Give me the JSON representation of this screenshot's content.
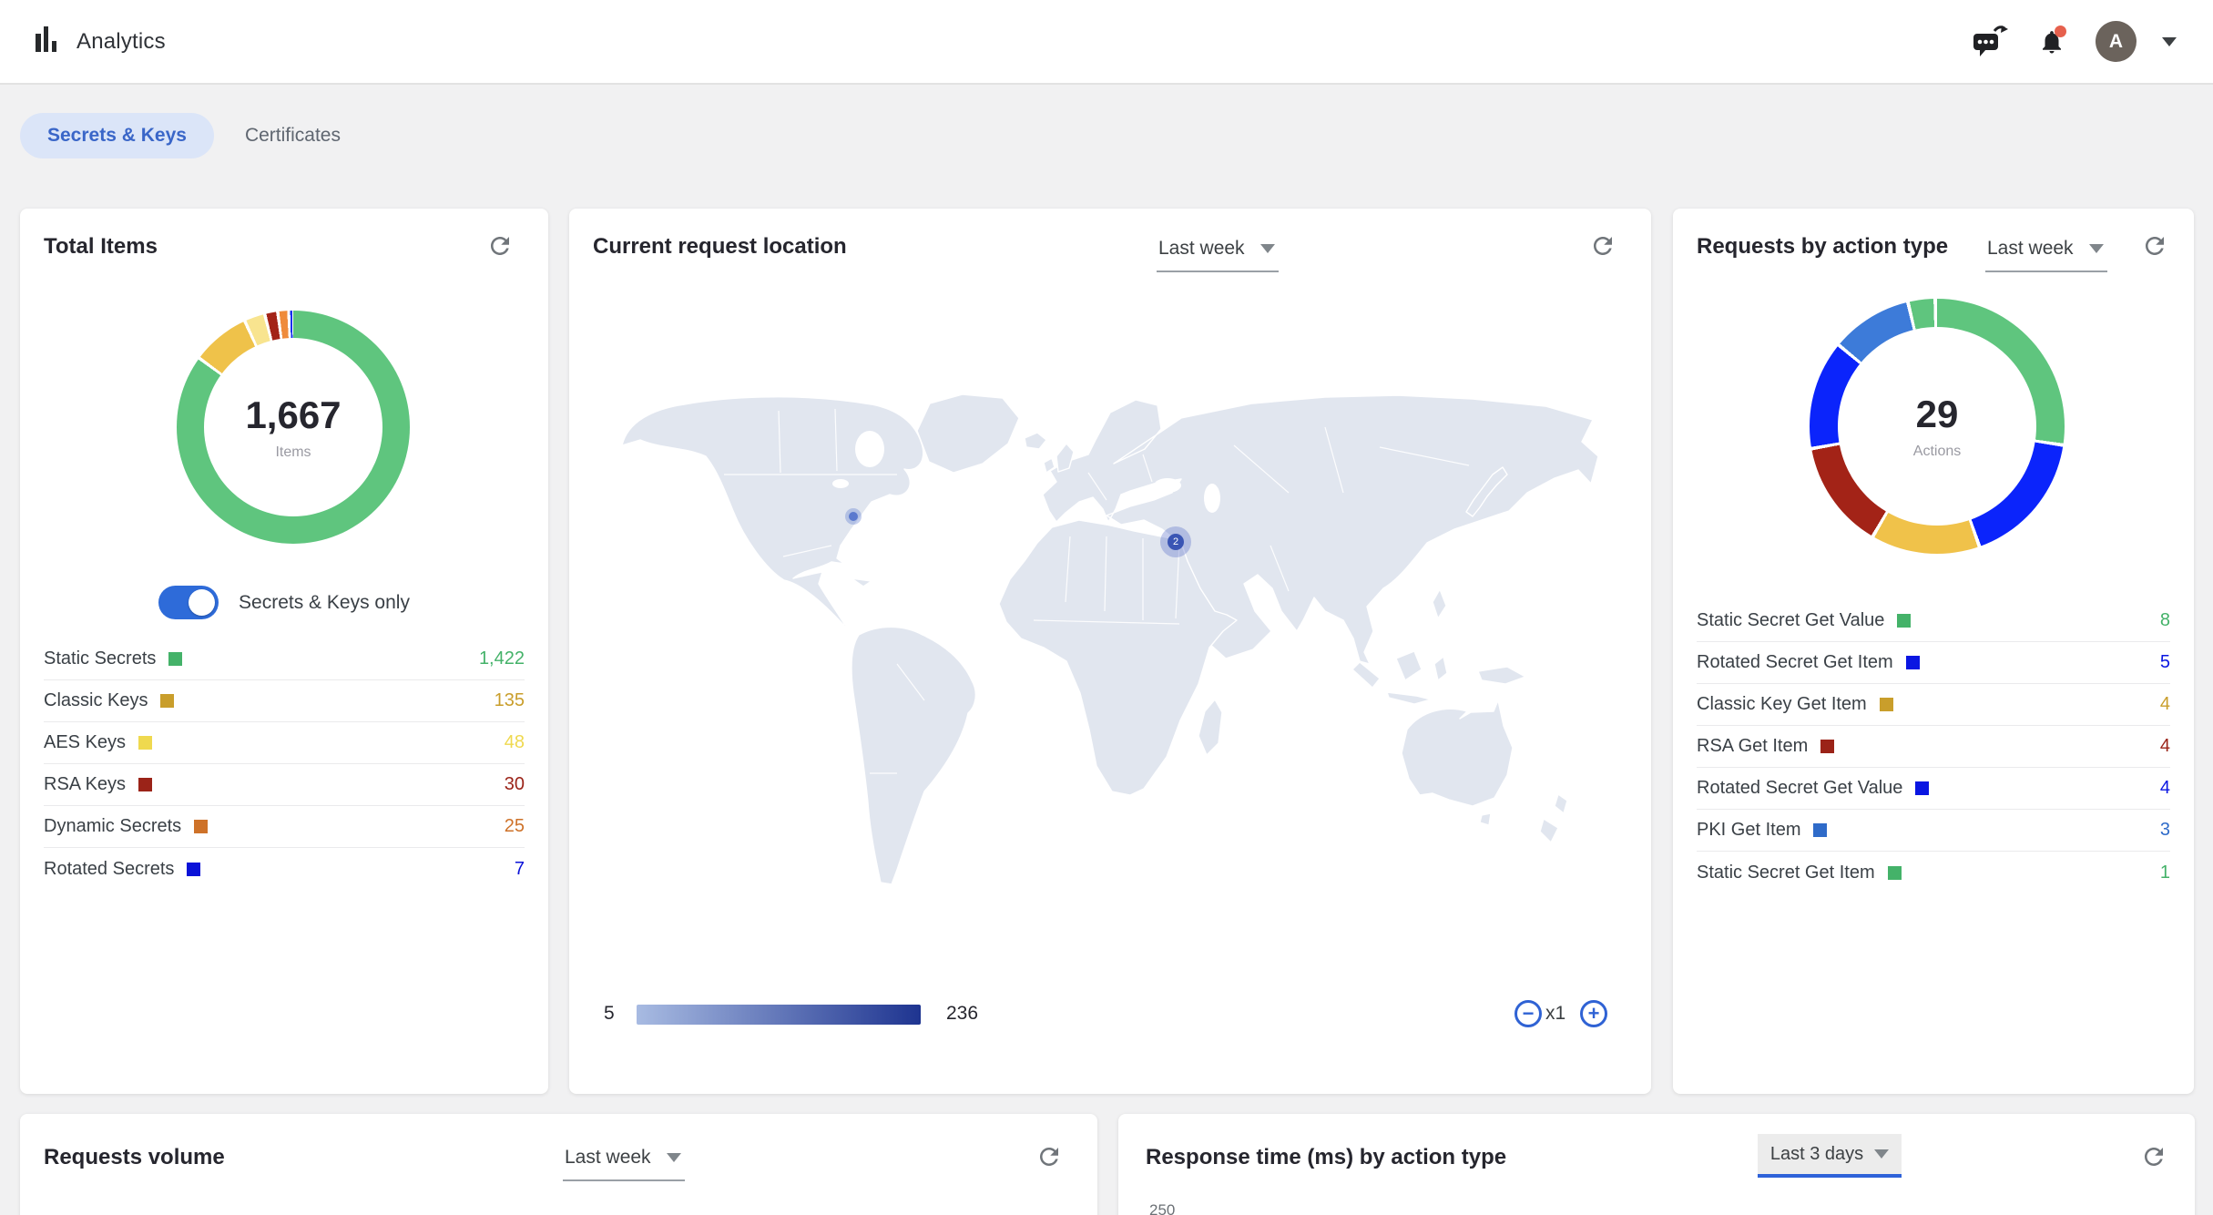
{
  "header": {
    "title": "Analytics",
    "avatar_initial": "A"
  },
  "tabs": {
    "secrets": "Secrets & Keys",
    "certificates": "Certificates"
  },
  "total_items": {
    "title": "Total Items",
    "center_value": "1,667",
    "center_label": "Items",
    "toggle_label": "Secrets & Keys only",
    "toggle_on": true,
    "rows": [
      {
        "label": "Static Secrets",
        "value": "1,422",
        "num": 1422,
        "color": "#44B269",
        "slice": "#5FC57E"
      },
      {
        "label": "Classic Keys",
        "value": "135",
        "num": 135,
        "color": "#C99E2B",
        "slice": "#EFC24A"
      },
      {
        "label": "AES Keys",
        "value": "48",
        "num": 48,
        "color": "#EFD94F",
        "slice": "#F8E48F"
      },
      {
        "label": "RSA Keys",
        "value": "30",
        "num": 30,
        "color": "#9B2318",
        "slice": "#A32317"
      },
      {
        "label": "Dynamic Secrets",
        "value": "25",
        "num": 25,
        "color": "#CE7229",
        "slice": "#EF8B3B"
      },
      {
        "label": "Rotated Secrets",
        "value": "7",
        "num": 7,
        "color": "#0A12D8",
        "slice": "#1130EE"
      }
    ]
  },
  "request_location": {
    "title": "Current request location",
    "range": "Last week",
    "scale_min": "5",
    "scale_max": "236",
    "zoom_level": "x1",
    "gradient_start": "#A8BBE2",
    "gradient_end": "#1E3490",
    "cluster_count": "2",
    "land_color": "#E1E6EF"
  },
  "action_type": {
    "title": "Requests by action type",
    "range": "Last week",
    "center_value": "29",
    "center_label": "Actions",
    "rows": [
      {
        "label": "Static Secret Get Value",
        "value": "8",
        "num": 8,
        "color": "#44B269",
        "slice": "#5FC57E"
      },
      {
        "label": "Rotated Secret Get Item",
        "value": "5",
        "num": 5,
        "color": "#0A16E2",
        "slice": "#0B24FB"
      },
      {
        "label": "Classic Key Get Item",
        "value": "4",
        "num": 4,
        "color": "#C99E2B",
        "slice": "#F0C24A"
      },
      {
        "label": "RSA Get Item",
        "value": "4",
        "num": 4,
        "color": "#9B2318",
        "slice": "#A32317"
      },
      {
        "label": "Rotated Secret Get Value",
        "value": "4",
        "num": 4,
        "color": "#0A16E2",
        "slice": "#0B24FB"
      },
      {
        "label": "PKI Get Item",
        "value": "3",
        "num": 3,
        "color": "#2F6BC9",
        "slice": "#3D7BD9"
      },
      {
        "label": "Static Secret Get Item",
        "value": "1",
        "num": 1,
        "color": "#44B269",
        "slice": "#5FC57E"
      }
    ]
  },
  "requests_volume": {
    "title": "Requests volume",
    "range": "Last week"
  },
  "response_time": {
    "title": "Response time (ms) by action type",
    "range": "Last 3 days",
    "partial_tick": "250"
  }
}
